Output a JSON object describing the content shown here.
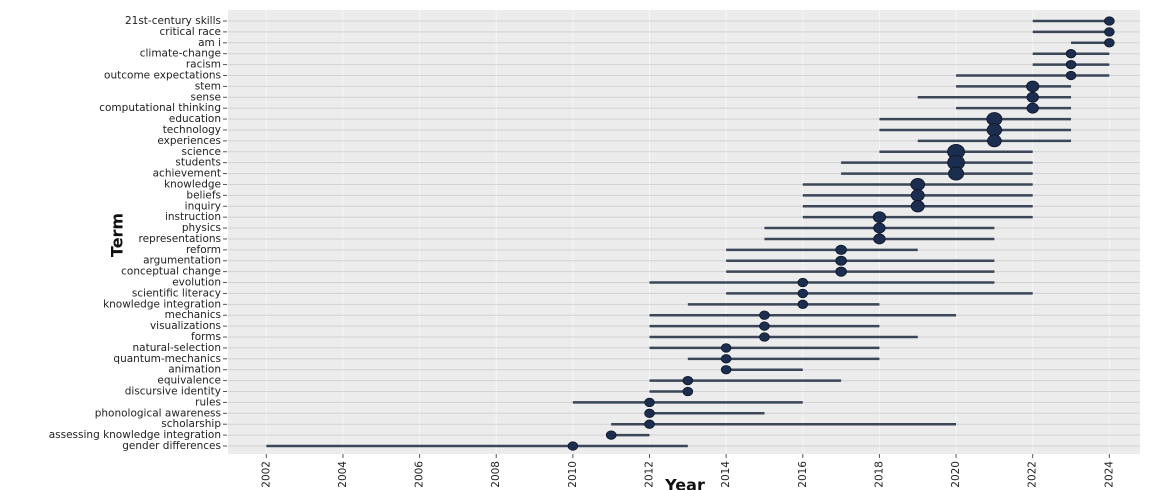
{
  "chart_data": {
    "type": "range",
    "x_label": "Year",
    "y_label": "Term",
    "categories": [
      "21st-century skills",
      "critical race",
      "am i",
      "climate-change",
      "racism",
      "outcome expectations",
      "stem",
      "sense",
      "computational thinking",
      "education",
      "technology",
      "experiences",
      "science",
      "students",
      "achievement",
      "knowledge",
      "beliefs",
      "inquiry",
      "instruction",
      "physics",
      "representations",
      "reform",
      "argumentation",
      "conceptual change",
      "evolution",
      "scientific literacy",
      "knowledge integration",
      "mechanics",
      "visualizations",
      "forms",
      "natural-selection",
      "quantum-mechanics",
      "animation",
      "equivalence",
      "discursive identity",
      "rules",
      "phonological awareness",
      "scholarship",
      "assessing knowledge integration",
      "gender differences"
    ],
    "start": [
      2022,
      2022,
      2023,
      2022,
      2022,
      2020,
      2020,
      2019,
      2020,
      2018,
      2018,
      2019,
      2018,
      2017,
      2017,
      2016,
      2016,
      2016,
      2016,
      2015,
      2015,
      2014,
      2014,
      2014,
      2012,
      2014,
      2013,
      2012,
      2012,
      2012,
      2012,
      2013,
      2014,
      2012,
      2012,
      2010,
      2012,
      2011,
      2011,
      2002
    ],
    "end": [
      2024,
      2024,
      2024,
      2024,
      2024,
      2024,
      2023,
      2023,
      2023,
      2023,
      2023,
      2023,
      2022,
      2022,
      2022,
      2022,
      2022,
      2022,
      2022,
      2021,
      2021,
      2019,
      2021,
      2021,
      2021,
      2022,
      2018,
      2020,
      2018,
      2019,
      2018,
      2018,
      2016,
      2017,
      2013,
      2016,
      2015,
      2020,
      2012,
      2013
    ],
    "values": [
      2024,
      2024,
      2024,
      2023,
      2023,
      2023,
      2022,
      2022,
      2022,
      2021,
      2021,
      2021,
      2020,
      2020,
      2020,
      2019,
      2019,
      2019,
      2018,
      2018,
      2018,
      2017,
      2017,
      2017,
      2016,
      2016,
      2016,
      2015,
      2015,
      2015,
      2014,
      2014,
      2014,
      2013,
      2013,
      2012,
      2012,
      2012,
      2011,
      2010
    ],
    "sizes": [
      5,
      5,
      5,
      5,
      5,
      5,
      8,
      7,
      7,
      12,
      11,
      10,
      15,
      15,
      12,
      10,
      9,
      9,
      8,
      7,
      7,
      6,
      6,
      6,
      5,
      5,
      5,
      5,
      5,
      5,
      5,
      5,
      5,
      5,
      5,
      5,
      5,
      5,
      5,
      5
    ],
    "color": "#3b4658",
    "point_color": "#1c2e4f",
    "xlim": [
      2001,
      2024.8
    ],
    "xticks": [
      2002,
      2004,
      2006,
      2008,
      2010,
      2012,
      2014,
      2016,
      2018,
      2020,
      2022,
      2024
    ],
    "grid": true
  }
}
